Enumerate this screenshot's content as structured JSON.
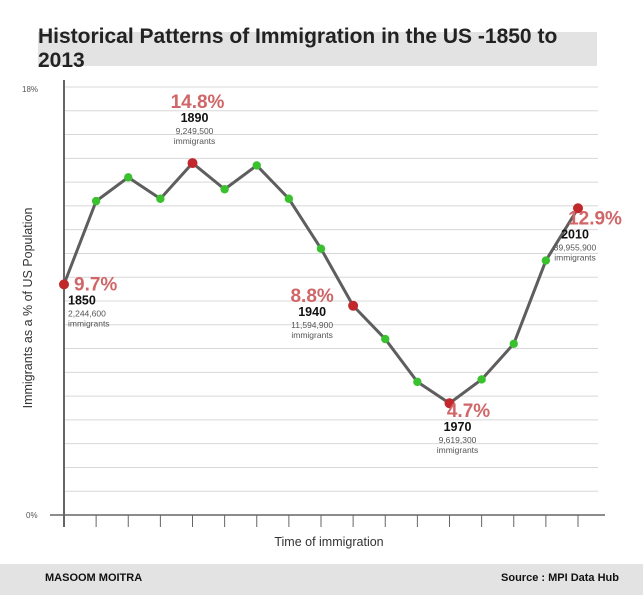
{
  "chart_data": {
    "type": "line",
    "title": "Historical Patterns of Immigration in the US -1850 to 2013",
    "xlabel": "Time of immigration",
    "ylabel": "Immigrants as a % of US Population",
    "ylim": [
      0,
      18
    ],
    "y_tick_labels": [
      "18%",
      "0%"
    ],
    "grid": true,
    "series": [
      {
        "values": [
          9.7,
          13.2,
          14.2,
          13.3,
          14.8,
          13.7,
          14.7,
          13.3,
          11.2,
          8.8,
          7.4,
          5.6,
          4.7,
          5.7,
          7.2,
          10.7,
          12.9
        ]
      }
    ],
    "annotations": [
      {
        "index": 0,
        "percent": "9.7%",
        "year": "1850",
        "count": "2,244,600",
        "unit": "immigrants"
      },
      {
        "index": 4,
        "percent": "14.8%",
        "year": "1890",
        "count": "9,249,500",
        "unit": "immigrants"
      },
      {
        "index": 9,
        "percent": "8.8%",
        "year": "1940",
        "count": "11,594,900",
        "unit": "immigrants"
      },
      {
        "index": 12,
        "percent": "4.7%",
        "year": "1970",
        "count": "9,619,300",
        "unit": "immigrants"
      },
      {
        "index": 16,
        "percent": "12.9%",
        "year": "2010",
        "count": "39,955,900",
        "unit": "immigrants"
      }
    ],
    "colors": {
      "line": "#5e5e5e",
      "point": "#39c22d",
      "highlight_point": "#c0282c",
      "percent_text": "#d06668",
      "grid": "#d8d8d8",
      "axis": "#666666"
    }
  },
  "footer": {
    "author": "MASOOM MOITRA",
    "source": "Source : MPI Data Hub"
  }
}
